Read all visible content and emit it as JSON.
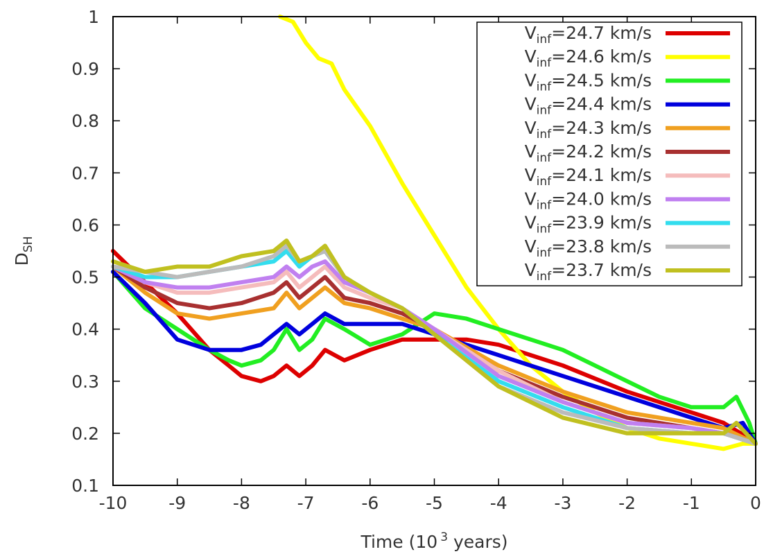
{
  "chart_data": {
    "type": "line",
    "xlabel": "Time (10",
    "xlabel_sup": "3",
    "xlabel_tail": " years)",
    "ylabel_main": "D",
    "ylabel_sub": "SH",
    "xlim": [
      -10,
      0
    ],
    "ylim": [
      0.1,
      1.0
    ],
    "x_ticks": [
      "-10",
      "-9",
      "-8",
      "-7",
      "-6",
      "-5",
      "-4",
      "-3",
      "-2",
      "-1",
      "0"
    ],
    "y_ticks": [
      "0.1",
      "0.2",
      "0.3",
      "0.4",
      "0.5",
      "0.6",
      "0.7",
      "0.8",
      "0.9",
      "1"
    ],
    "grid": false,
    "legend_position": "top-right",
    "legend_prefix": "V",
    "legend_sub": "inf",
    "series": [
      {
        "name": "=24.7 km/s",
        "color": "#dd0000",
        "x": [
          -10,
          -9.5,
          -9,
          -8.5,
          -8.2,
          -8,
          -7.7,
          -7.5,
          -7.3,
          -7.1,
          -6.9,
          -6.7,
          -6.4,
          -6,
          -5.5,
          -5,
          -4.5,
          -4,
          -3,
          -2,
          -1,
          -0.5,
          -0.1,
          0
        ],
        "y": [
          0.55,
          0.49,
          0.43,
          0.36,
          0.33,
          0.31,
          0.3,
          0.31,
          0.33,
          0.31,
          0.33,
          0.36,
          0.34,
          0.36,
          0.38,
          0.38,
          0.38,
          0.37,
          0.33,
          0.28,
          0.24,
          0.22,
          0.19,
          0.18
        ]
      },
      {
        "name": "=24.6 km/s",
        "color": "#ffff00",
        "x": [
          -7.4,
          -7.2,
          -7.0,
          -6.8,
          -6.6,
          -6.4,
          -6.0,
          -5.5,
          -5.0,
          -4.5,
          -4.0,
          -3.5,
          -3.0,
          -2.5,
          -2.0,
          -1.5,
          -1.0,
          -0.5,
          -0.2,
          0
        ],
        "y": [
          1.0,
          0.99,
          0.95,
          0.92,
          0.91,
          0.86,
          0.79,
          0.68,
          0.58,
          0.48,
          0.4,
          0.33,
          0.28,
          0.24,
          0.21,
          0.19,
          0.18,
          0.17,
          0.18,
          0.18
        ]
      },
      {
        "name": "=24.5 km/s",
        "color": "#22ee22",
        "x": [
          -10,
          -9.5,
          -9,
          -8.5,
          -8.2,
          -8,
          -7.7,
          -7.5,
          -7.3,
          -7.1,
          -6.9,
          -6.7,
          -6.4,
          -6,
          -5.5,
          -5,
          -4.5,
          -4,
          -3.5,
          -3,
          -2.5,
          -2,
          -1.5,
          -1,
          -0.5,
          -0.3,
          -0.1,
          0
        ],
        "y": [
          0.51,
          0.44,
          0.4,
          0.36,
          0.34,
          0.33,
          0.34,
          0.36,
          0.4,
          0.36,
          0.38,
          0.42,
          0.4,
          0.37,
          0.39,
          0.43,
          0.42,
          0.4,
          0.38,
          0.36,
          0.33,
          0.3,
          0.27,
          0.25,
          0.25,
          0.27,
          0.22,
          0.18
        ]
      },
      {
        "name": "=24.4 km/s",
        "color": "#0000dd",
        "x": [
          -10,
          -9.5,
          -9,
          -8.5,
          -8.2,
          -8,
          -7.7,
          -7.5,
          -7.3,
          -7.1,
          -6.9,
          -6.7,
          -6.4,
          -6,
          -5.5,
          -5,
          -4.5,
          -4,
          -3,
          -2,
          -1,
          -0.5,
          -0.2,
          0
        ],
        "y": [
          0.51,
          0.45,
          0.38,
          0.36,
          0.36,
          0.36,
          0.37,
          0.39,
          0.41,
          0.39,
          0.41,
          0.43,
          0.41,
          0.41,
          0.41,
          0.39,
          0.37,
          0.35,
          0.31,
          0.27,
          0.23,
          0.21,
          0.22,
          0.18
        ]
      },
      {
        "name": "=24.3 km/s",
        "color": "#f0a020",
        "x": [
          -10,
          -9.5,
          -9,
          -8.5,
          -8,
          -7.5,
          -7.3,
          -7.1,
          -6.9,
          -6.7,
          -6.4,
          -6,
          -5.5,
          -5,
          -4,
          -3,
          -2,
          -1,
          -0.5,
          0
        ],
        "y": [
          0.52,
          0.47,
          0.43,
          0.42,
          0.43,
          0.44,
          0.47,
          0.44,
          0.46,
          0.48,
          0.45,
          0.44,
          0.42,
          0.4,
          0.33,
          0.28,
          0.24,
          0.22,
          0.21,
          0.18
        ]
      },
      {
        "name": "=24.2 km/s",
        "color": "#a83030",
        "x": [
          -10,
          -9.5,
          -9,
          -8.5,
          -8,
          -7.5,
          -7.3,
          -7.1,
          -6.9,
          -6.7,
          -6.4,
          -6,
          -5.5,
          -5,
          -4,
          -3,
          -2,
          -1,
          -0.5,
          0
        ],
        "y": [
          0.52,
          0.48,
          0.45,
          0.44,
          0.45,
          0.47,
          0.49,
          0.46,
          0.48,
          0.5,
          0.46,
          0.45,
          0.43,
          0.4,
          0.32,
          0.27,
          0.23,
          0.21,
          0.2,
          0.18
        ]
      },
      {
        "name": "=24.1 km/s",
        "color": "#f5bcbc",
        "x": [
          -10,
          -9.5,
          -9,
          -8.5,
          -8,
          -7.5,
          -7.3,
          -7.1,
          -6.9,
          -6.7,
          -6.4,
          -6,
          -5.5,
          -5,
          -4,
          -3,
          -2,
          -1,
          -0.5,
          0
        ],
        "y": [
          0.52,
          0.49,
          0.47,
          0.47,
          0.48,
          0.49,
          0.51,
          0.48,
          0.5,
          0.52,
          0.48,
          0.46,
          0.44,
          0.4,
          0.32,
          0.26,
          0.22,
          0.21,
          0.2,
          0.18
        ]
      },
      {
        "name": "=24.0 km/s",
        "color": "#c080f0",
        "x": [
          -10,
          -9.5,
          -9,
          -8.5,
          -8,
          -7.5,
          -7.3,
          -7.1,
          -6.9,
          -6.7,
          -6.4,
          -6,
          -5.5,
          -5,
          -4,
          -3,
          -2,
          -1,
          -0.5,
          0
        ],
        "y": [
          0.52,
          0.49,
          0.48,
          0.48,
          0.49,
          0.5,
          0.52,
          0.5,
          0.52,
          0.53,
          0.49,
          0.47,
          0.44,
          0.4,
          0.31,
          0.26,
          0.22,
          0.21,
          0.2,
          0.18
        ]
      },
      {
        "name": "=23.9 km/s",
        "color": "#33ddee",
        "x": [
          -10,
          -9.5,
          -9,
          -8.5,
          -8,
          -7.5,
          -7.3,
          -7.1,
          -6.9,
          -6.7,
          -6.4,
          -6,
          -5.5,
          -5,
          -4,
          -3,
          -2,
          -1,
          -0.5,
          0
        ],
        "y": [
          0.52,
          0.5,
          0.5,
          0.51,
          0.52,
          0.53,
          0.55,
          0.52,
          0.54,
          0.55,
          0.5,
          0.47,
          0.44,
          0.39,
          0.3,
          0.25,
          0.21,
          0.2,
          0.2,
          0.18
        ]
      },
      {
        "name": "=23.8 km/s",
        "color": "#bbbbbb",
        "x": [
          -10,
          -9.5,
          -9,
          -8.5,
          -8,
          -7.5,
          -7.3,
          -7.1,
          -6.9,
          -6.7,
          -6.4,
          -6,
          -5.5,
          -5,
          -4,
          -3,
          -2,
          -1,
          -0.5,
          0
        ],
        "y": [
          0.52,
          0.51,
          0.5,
          0.51,
          0.52,
          0.54,
          0.56,
          0.53,
          0.54,
          0.55,
          0.5,
          0.47,
          0.44,
          0.39,
          0.29,
          0.24,
          0.21,
          0.2,
          0.2,
          0.18
        ]
      },
      {
        "name": "=23.7 km/s",
        "color": "#c0c020",
        "x": [
          -10,
          -9.5,
          -9,
          -8.5,
          -8,
          -7.5,
          -7.3,
          -7.1,
          -6.9,
          -6.7,
          -6.4,
          -6,
          -5.5,
          -5,
          -4,
          -3,
          -2,
          -1,
          -0.5,
          -0.3,
          0
        ],
        "y": [
          0.53,
          0.51,
          0.52,
          0.52,
          0.54,
          0.55,
          0.57,
          0.53,
          0.54,
          0.56,
          0.5,
          0.47,
          0.44,
          0.39,
          0.29,
          0.23,
          0.2,
          0.2,
          0.2,
          0.22,
          0.18
        ]
      }
    ]
  }
}
